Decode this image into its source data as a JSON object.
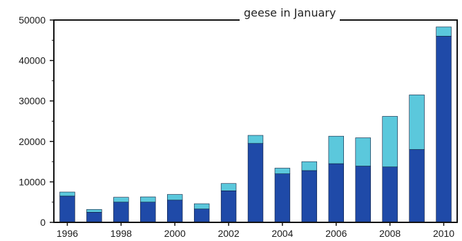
{
  "chart_data": {
    "type": "bar",
    "stacked": true,
    "title": "geese in January",
    "xlabel": "",
    "ylabel": "",
    "categories": [
      "1996",
      "1997",
      "1998",
      "1999",
      "2000",
      "2001",
      "2002",
      "2003",
      "2004",
      "2005",
      "2006",
      "2007",
      "2008",
      "2009",
      "2010"
    ],
    "x_tick_labels": [
      "1996",
      "1998",
      "2000",
      "2002",
      "2004",
      "2006",
      "2008",
      "2010"
    ],
    "y_ticks": [
      0,
      10000,
      20000,
      30000,
      40000,
      50000
    ],
    "ylim": [
      0,
      50000
    ],
    "grid": false,
    "series": [
      {
        "color": "#1f4aa8",
        "values": [
          6500,
          2500,
          5000,
          5000,
          5500,
          3300,
          7800,
          19500,
          12000,
          12800,
          14500,
          13900,
          13700,
          18000,
          46000
        ]
      },
      {
        "color": "#5bc8dc",
        "values": [
          1000,
          700,
          1200,
          1300,
          1400,
          1300,
          1800,
          2000,
          1400,
          2200,
          6800,
          7000,
          12500,
          13500,
          2300
        ]
      }
    ]
  }
}
